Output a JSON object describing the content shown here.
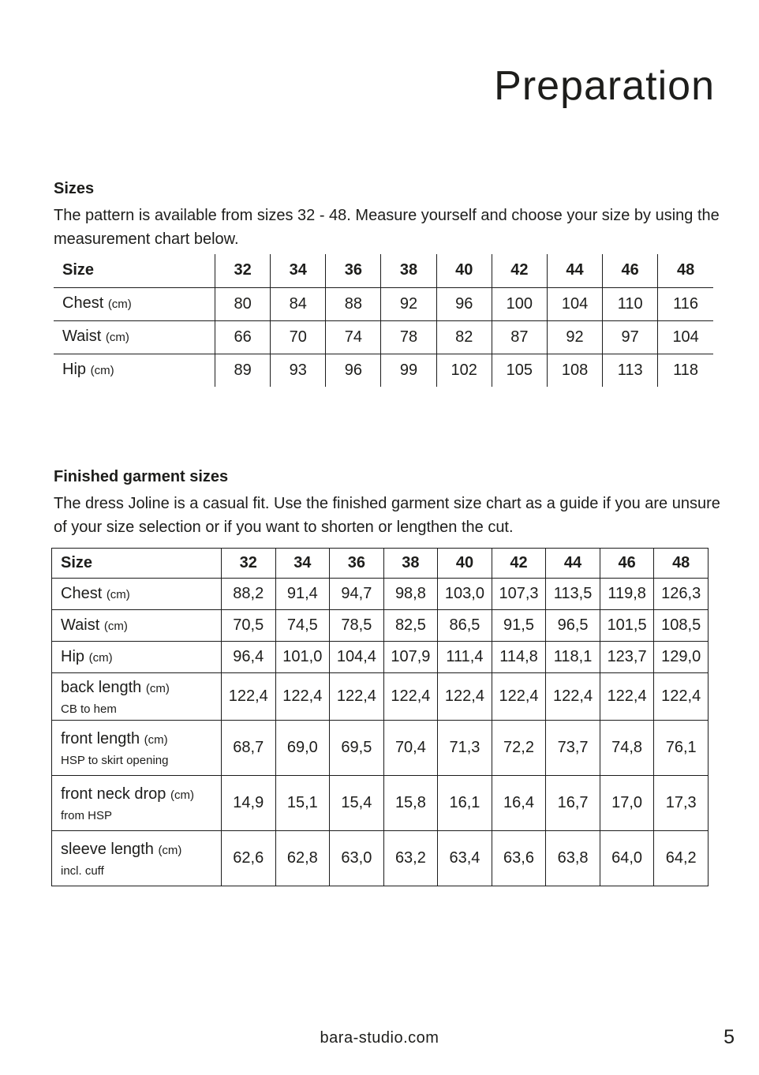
{
  "page": {
    "title": "Preparation",
    "footer_site": "bara-studio.com",
    "page_number": "5",
    "text_color": "#1d1d1b",
    "background_color": "#ffffff"
  },
  "sizes_section": {
    "heading": "Sizes",
    "body": "The pattern is available from sizes 32 - 48. Measure yourself and choose your size by using the measurement chart below."
  },
  "body_measurements_table": {
    "header_label": "Size",
    "sizes": [
      "32",
      "34",
      "36",
      "38",
      "40",
      "42",
      "44",
      "46",
      "48"
    ],
    "rows": [
      {
        "label": "Chest",
        "unit": "(cm)",
        "sublabel": "",
        "values": [
          "80",
          "84",
          "88",
          "92",
          "96",
          "100",
          "104",
          "110",
          "116"
        ]
      },
      {
        "label": "Waist",
        "unit": "(cm)",
        "sublabel": "",
        "values": [
          "66",
          "70",
          "74",
          "78",
          "82",
          "87",
          "92",
          "97",
          "104"
        ]
      },
      {
        "label": "Hip",
        "unit": "(cm)",
        "sublabel": "",
        "values": [
          "89",
          "93",
          "96",
          "99",
          "102",
          "105",
          "108",
          "113",
          "118"
        ]
      }
    ]
  },
  "finished_section": {
    "heading": "Finished garment sizes",
    "body": "The dress Joline is a casual fit. Use the finished garment size chart as a guide if you are unsure of your size selection or if you want to shorten or lengthen the cut."
  },
  "finished_garment_table": {
    "header_label": "Size",
    "sizes": [
      "32",
      "34",
      "36",
      "38",
      "40",
      "42",
      "44",
      "46",
      "48"
    ],
    "rows": [
      {
        "label": "Chest",
        "unit": "(cm)",
        "sublabel": "",
        "values": [
          "88,2",
          "91,4",
          "94,7",
          "98,8",
          "103,0",
          "107,3",
          "113,5",
          "119,8",
          "126,3"
        ]
      },
      {
        "label": "Waist",
        "unit": "(cm)",
        "sublabel": "",
        "values": [
          "70,5",
          "74,5",
          "78,5",
          "82,5",
          "86,5",
          "91,5",
          "96,5",
          "101,5",
          "108,5"
        ]
      },
      {
        "label": "Hip",
        "unit": "(cm)",
        "sublabel": "",
        "values": [
          "96,4",
          "101,0",
          "104,4",
          "107,9",
          "111,4",
          "114,8",
          "118,1",
          "123,7",
          "129,0"
        ]
      },
      {
        "label": "back length",
        "unit": "(cm)",
        "sublabel": "CB to hem",
        "values": [
          "122,4",
          "122,4",
          "122,4",
          "122,4",
          "122,4",
          "122,4",
          "122,4",
          "122,4",
          "122,4"
        ]
      },
      {
        "label": "front length",
        "unit": "(cm)",
        "sublabel": "HSP to skirt opening",
        "values": [
          "68,7",
          "69,0",
          "69,5",
          "70,4",
          "71,3",
          "72,2",
          "73,7",
          "74,8",
          "76,1"
        ]
      },
      {
        "label": "front neck drop",
        "unit": "(cm)",
        "sublabel": "from HSP",
        "values": [
          "14,9",
          "15,1",
          "15,4",
          "15,8",
          "16,1",
          "16,4",
          "16,7",
          "17,0",
          "17,3"
        ]
      },
      {
        "label": "sleeve length",
        "unit": "(cm)",
        "sublabel": "incl. cuff",
        "values": [
          "62,6",
          "62,8",
          "63,0",
          "63,2",
          "63,4",
          "63,6",
          "63,8",
          "64,0",
          "64,2"
        ]
      }
    ]
  }
}
